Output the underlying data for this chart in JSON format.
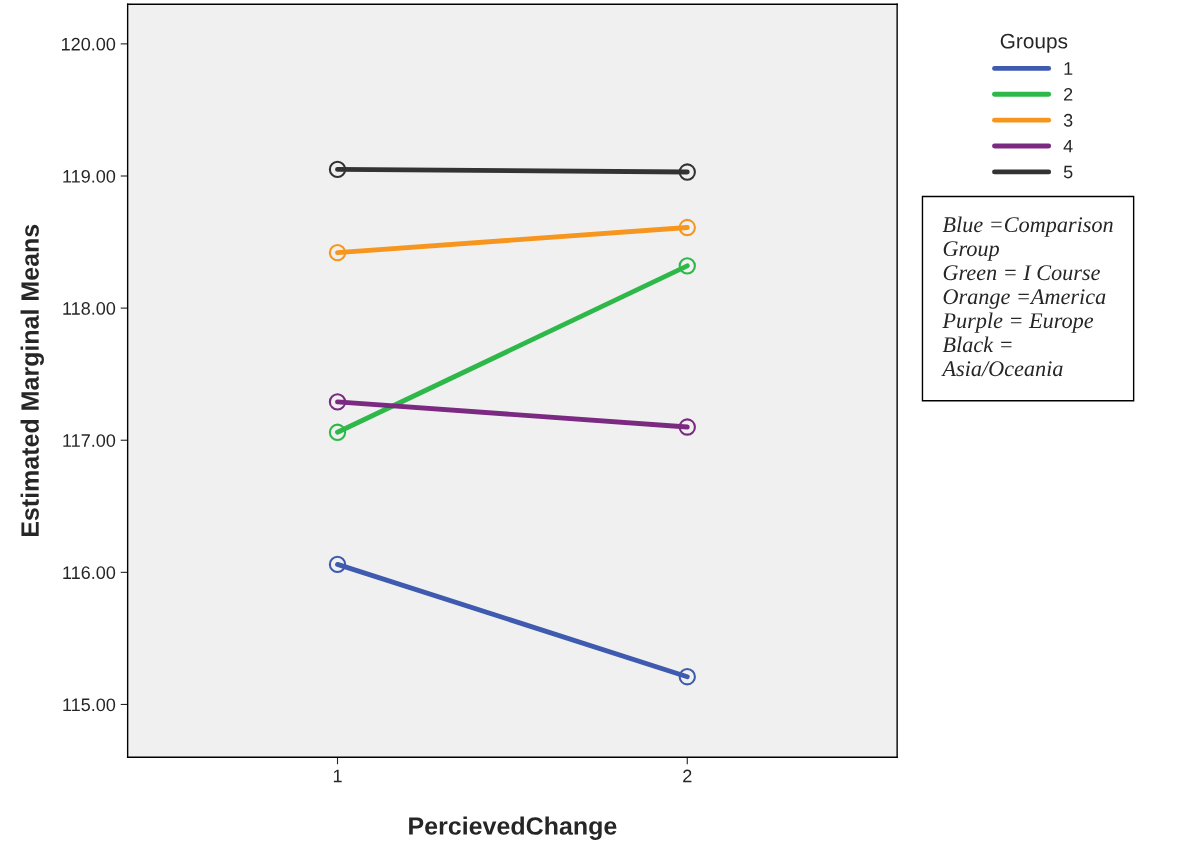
{
  "chart_data": {
    "type": "line",
    "xlabel": "PercievedChange",
    "ylabel": "Estimated Marginal Means",
    "categories": [
      "1",
      "2"
    ],
    "ylim": [
      114.6,
      120.3
    ],
    "yticks": [
      {
        "value": 115,
        "label": "115.00"
      },
      {
        "value": 116,
        "label": "116.00"
      },
      {
        "value": 117,
        "label": "117.00"
      },
      {
        "value": 118,
        "label": "118.00"
      },
      {
        "value": 119,
        "label": "119.00"
      },
      {
        "value": 120,
        "label": "120.00"
      }
    ],
    "series": [
      {
        "name": "1",
        "color": "#3f5bb0",
        "values": [
          116.06,
          115.21
        ]
      },
      {
        "name": "2",
        "color": "#2fb84a",
        "values": [
          117.06,
          118.32
        ]
      },
      {
        "name": "3",
        "color": "#f7961e",
        "values": [
          118.42,
          118.61
        ]
      },
      {
        "name": "4",
        "color": "#7a2a80",
        "values": [
          117.29,
          117.1
        ]
      },
      {
        "name": "5",
        "color": "#333333",
        "values": [
          119.05,
          119.03
        ]
      }
    ],
    "marker": "circle",
    "line_style": "solid",
    "grid": false,
    "legend": "top right",
    "legend_title": "Groups",
    "annotations": [
      "Blue =Comparison\nGroup\nGreen = I Course\nOrange =America\nPurple = Europe\nBlack =\nAsia/Oceania"
    ]
  }
}
